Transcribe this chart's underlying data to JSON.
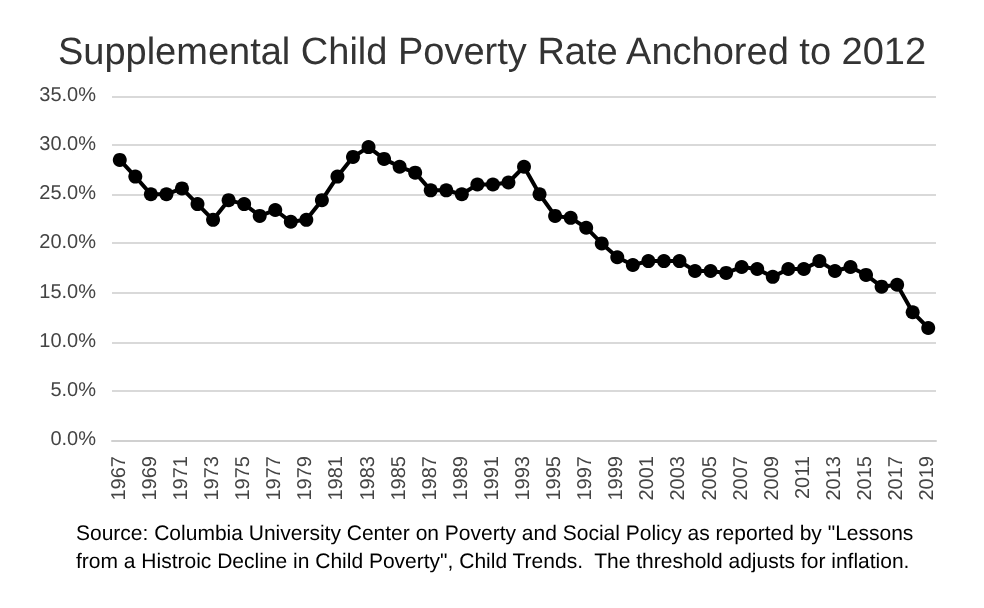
{
  "chart_data": {
    "type": "line",
    "title": "Supplemental Child Poverty Rate Anchored to 2012",
    "categories": [
      "1967",
      null,
      "1969",
      null,
      "1971",
      null,
      "1973",
      null,
      "1975",
      null,
      "1977",
      null,
      "1979",
      null,
      "1981",
      null,
      "1983",
      null,
      "1985",
      null,
      "1987",
      null,
      "1989",
      null,
      "1991",
      null,
      "1993",
      null,
      "1995",
      null,
      "1997",
      null,
      "1999",
      null,
      "2001",
      null,
      "2003",
      null,
      "2005",
      null,
      "2007",
      null,
      "2009",
      null,
      "2011",
      null,
      "2013",
      null,
      "2015",
      null,
      "2017",
      null,
      "2019"
    ],
    "series": [
      {
        "color": "#000000",
        "values": [
          28.5,
          26.8,
          25.0,
          25.0,
          25.6,
          24.0,
          22.4,
          24.4,
          24.0,
          22.8,
          23.4,
          22.2,
          22.4,
          24.4,
          26.8,
          28.8,
          29.8,
          28.6,
          27.8,
          27.2,
          25.4,
          25.4,
          25.0,
          26.0,
          26.0,
          26.2,
          27.8,
          25.0,
          22.8,
          22.6,
          21.6,
          20.0,
          18.6,
          17.8,
          18.2,
          18.2,
          18.2,
          17.2,
          17.2,
          17.0,
          17.6,
          17.4,
          16.6,
          17.4,
          17.4,
          18.2,
          17.2,
          17.6,
          16.8,
          15.6,
          15.8,
          13.0,
          11.4
        ]
      }
    ],
    "ylim": [
      0,
      35
    ],
    "yticks": [
      {
        "value": 0,
        "label": "0.0%"
      },
      {
        "value": 5,
        "label": "5.0%"
      },
      {
        "value": 10,
        "label": "10.0%"
      },
      {
        "value": 15,
        "label": "15.0%"
      },
      {
        "value": 20,
        "label": "20.0%"
      },
      {
        "value": 25,
        "label": "25.0%"
      },
      {
        "value": 30,
        "label": "30.0%"
      },
      {
        "value": 35,
        "label": "35.0%"
      }
    ],
    "grid": "y",
    "marker": "circle",
    "line_style": "solid",
    "annotations": [
      "Source: Columbia University Center on Poverty and Social Policy as reported by \"Lessons from a Histroic Decline in Child Poverty\", Child Trends.  The threshold adjusts for inflation."
    ]
  }
}
